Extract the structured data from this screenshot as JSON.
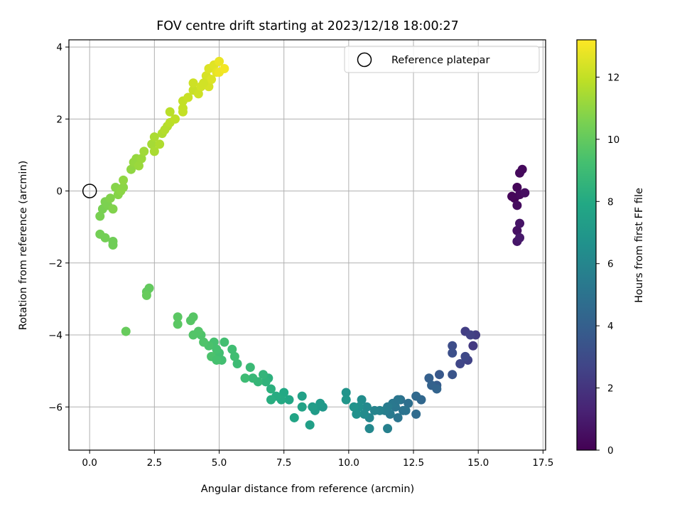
{
  "chart_data": {
    "type": "scatter",
    "title": "FOV centre drift starting at 2023/12/18 18:00:27",
    "xlabel": "Angular distance from reference (arcmin)",
    "ylabel": "Rotation from reference (arcmin)",
    "xlim": [
      -0.8,
      17.6
    ],
    "ylim": [
      -7.2,
      4.2
    ],
    "xticks": [
      0.0,
      2.5,
      5.0,
      7.5,
      10.0,
      12.5,
      15.0,
      17.5
    ],
    "xtick_labels": [
      "0.0",
      "2.5",
      "5.0",
      "7.5",
      "10.0",
      "12.5",
      "15.0",
      "17.5"
    ],
    "yticks": [
      -6,
      -4,
      -2,
      0,
      2,
      4
    ],
    "ytick_labels": [
      "−6",
      "−4",
      "−2",
      "0",
      "2",
      "4"
    ],
    "grid": true,
    "legend": {
      "placement": "top-right",
      "entries": [
        {
          "label": "Reference platepar",
          "marker": "open-circle"
        }
      ]
    },
    "reference_point": {
      "x": 0.0,
      "y": 0.0
    },
    "colormap": "viridis",
    "colorbar": {
      "label": "Hours from first FF file",
      "min": 0,
      "max": 13.2,
      "ticks": [
        0,
        2,
        4,
        6,
        8,
        10,
        12
      ],
      "tick_labels": [
        "0",
        "2",
        "4",
        "6",
        "8",
        "10",
        "12"
      ]
    },
    "series": [
      {
        "points": [
          {
            "x": 16.4,
            "y": -0.2,
            "c": 0.1
          },
          {
            "x": 16.5,
            "y": 0.1,
            "c": 0.2
          },
          {
            "x": 16.6,
            "y": 0.5,
            "c": 0.3
          },
          {
            "x": 16.6,
            "y": -0.1,
            "c": 0.3
          },
          {
            "x": 16.5,
            "y": -0.4,
            "c": 0.4
          },
          {
            "x": 16.8,
            "y": -0.05,
            "c": 0.5
          },
          {
            "x": 16.5,
            "y": -1.1,
            "c": 0.6
          },
          {
            "x": 16.6,
            "y": -0.9,
            "c": 0.7
          },
          {
            "x": 16.5,
            "y": -1.4,
            "c": 0.8
          },
          {
            "x": 16.6,
            "y": -1.3,
            "c": 0.9
          },
          {
            "x": 16.3,
            "y": -0.15,
            "c": 0.2
          },
          {
            "x": 16.7,
            "y": 0.6,
            "c": 0.3
          },
          {
            "x": 14.8,
            "y": -4.3,
            "c": 2.2
          },
          {
            "x": 14.9,
            "y": -4.0,
            "c": 2.3
          },
          {
            "x": 14.5,
            "y": -3.9,
            "c": 2.4
          },
          {
            "x": 14.7,
            "y": -4.0,
            "c": 2.5
          },
          {
            "x": 14.6,
            "y": -4.7,
            "c": 2.6
          },
          {
            "x": 14.3,
            "y": -4.8,
            "c": 2.8
          },
          {
            "x": 14.5,
            "y": -4.6,
            "c": 2.9
          },
          {
            "x": 14.0,
            "y": -4.3,
            "c": 3.1
          },
          {
            "x": 14.0,
            "y": -4.5,
            "c": 3.2
          },
          {
            "x": 14.0,
            "y": -5.1,
            "c": 3.4
          },
          {
            "x": 13.5,
            "y": -5.1,
            "c": 3.6
          },
          {
            "x": 13.4,
            "y": -5.4,
            "c": 3.8
          },
          {
            "x": 13.1,
            "y": -5.2,
            "c": 4.0
          },
          {
            "x": 13.2,
            "y": -5.4,
            "c": 4.1
          },
          {
            "x": 13.4,
            "y": -5.5,
            "c": 4.2
          },
          {
            "x": 12.8,
            "y": -5.8,
            "c": 4.4
          },
          {
            "x": 12.6,
            "y": -5.7,
            "c": 4.5
          },
          {
            "x": 12.6,
            "y": -6.2,
            "c": 4.6
          },
          {
            "x": 12.3,
            "y": -5.9,
            "c": 4.8
          },
          {
            "x": 12.0,
            "y": -5.8,
            "c": 4.9
          },
          {
            "x": 12.1,
            "y": -6.1,
            "c": 5.0
          },
          {
            "x": 11.9,
            "y": -6.3,
            "c": 5.1
          },
          {
            "x": 11.8,
            "y": -6.0,
            "c": 5.2
          },
          {
            "x": 11.7,
            "y": -5.9,
            "c": 5.3
          },
          {
            "x": 11.6,
            "y": -6.2,
            "c": 5.4
          },
          {
            "x": 11.5,
            "y": -6.0,
            "c": 5.5
          },
          {
            "x": 11.4,
            "y": -6.1,
            "c": 5.6
          },
          {
            "x": 11.5,
            "y": -6.6,
            "c": 5.7
          },
          {
            "x": 11.2,
            "y": -6.1,
            "c": 5.8
          },
          {
            "x": 11.0,
            "y": -6.1,
            "c": 5.9
          },
          {
            "x": 10.8,
            "y": -6.3,
            "c": 6.0
          },
          {
            "x": 10.8,
            "y": -6.6,
            "c": 6.1
          },
          {
            "x": 10.7,
            "y": -6.0,
            "c": 6.2
          },
          {
            "x": 10.6,
            "y": -6.2,
            "c": 6.3
          },
          {
            "x": 10.5,
            "y": -5.8,
            "c": 6.4
          },
          {
            "x": 10.4,
            "y": -6.0,
            "c": 6.5
          },
          {
            "x": 10.3,
            "y": -6.2,
            "c": 6.6
          },
          {
            "x": 10.2,
            "y": -6.0,
            "c": 6.7
          },
          {
            "x": 9.9,
            "y": -5.6,
            "c": 6.8
          },
          {
            "x": 9.9,
            "y": -5.8,
            "c": 6.9
          },
          {
            "x": 11.9,
            "y": -5.8,
            "c": 5.2
          },
          {
            "x": 12.2,
            "y": -6.1,
            "c": 5.0
          },
          {
            "x": 9.0,
            "y": -6.0,
            "c": 7.0
          },
          {
            "x": 8.9,
            "y": -5.9,
            "c": 7.1
          },
          {
            "x": 8.7,
            "y": -6.1,
            "c": 7.2
          },
          {
            "x": 8.6,
            "y": -6.0,
            "c": 7.3
          },
          {
            "x": 8.5,
            "y": -6.5,
            "c": 7.4
          },
          {
            "x": 8.2,
            "y": -5.7,
            "c": 7.5
          },
          {
            "x": 8.2,
            "y": -6.0,
            "c": 7.6
          },
          {
            "x": 7.9,
            "y": -6.3,
            "c": 7.7
          },
          {
            "x": 7.7,
            "y": -5.8,
            "c": 7.8
          },
          {
            "x": 7.5,
            "y": -5.6,
            "c": 7.9
          },
          {
            "x": 7.4,
            "y": -5.8,
            "c": 8.0
          },
          {
            "x": 7.2,
            "y": -5.7,
            "c": 8.1
          },
          {
            "x": 7.0,
            "y": -5.8,
            "c": 8.2
          },
          {
            "x": 7.0,
            "y": -5.5,
            "c": 8.3
          },
          {
            "x": 6.9,
            "y": -5.2,
            "c": 8.4
          },
          {
            "x": 6.8,
            "y": -5.3,
            "c": 8.5
          },
          {
            "x": 6.7,
            "y": -5.1,
            "c": 8.6
          },
          {
            "x": 6.5,
            "y": -5.3,
            "c": 8.7
          },
          {
            "x": 6.3,
            "y": -5.2,
            "c": 8.8
          },
          {
            "x": 6.2,
            "y": -4.9,
            "c": 8.9
          },
          {
            "x": 6.0,
            "y": -5.2,
            "c": 9.0
          },
          {
            "x": 5.7,
            "y": -4.8,
            "c": 9.0
          },
          {
            "x": 5.6,
            "y": -4.6,
            "c": 9.1
          },
          {
            "x": 5.5,
            "y": -4.4,
            "c": 9.1
          },
          {
            "x": 5.1,
            "y": -4.7,
            "c": 9.2
          },
          {
            "x": 5.0,
            "y": -4.5,
            "c": 9.2
          },
          {
            "x": 4.9,
            "y": -4.4,
            "c": 9.3
          },
          {
            "x": 4.8,
            "y": -4.2,
            "c": 9.3
          },
          {
            "x": 4.7,
            "y": -4.6,
            "c": 9.4
          },
          {
            "x": 4.6,
            "y": -4.3,
            "c": 9.4
          },
          {
            "x": 4.4,
            "y": -4.2,
            "c": 9.5
          },
          {
            "x": 4.3,
            "y": -4.0,
            "c": 9.5
          },
          {
            "x": 4.2,
            "y": -3.9,
            "c": 9.6
          },
          {
            "x": 4.0,
            "y": -4.0,
            "c": 9.6
          },
          {
            "x": 3.9,
            "y": -3.6,
            "c": 9.7
          },
          {
            "x": 4.0,
            "y": -3.5,
            "c": 9.7
          },
          {
            "x": 3.4,
            "y": -3.7,
            "c": 9.8
          },
          {
            "x": 3.4,
            "y": -3.5,
            "c": 9.8
          },
          {
            "x": 5.2,
            "y": -4.2,
            "c": 9.2
          },
          {
            "x": 4.9,
            "y": -4.7,
            "c": 9.3
          },
          {
            "x": 2.3,
            "y": -2.7,
            "c": 10.0
          },
          {
            "x": 2.2,
            "y": -2.8,
            "c": 10.0
          },
          {
            "x": 2.2,
            "y": -2.9,
            "c": 10.1
          },
          {
            "x": 1.4,
            "y": -3.9,
            "c": 10.1
          },
          {
            "x": 0.9,
            "y": -1.5,
            "c": 10.3
          },
          {
            "x": 0.9,
            "y": -1.4,
            "c": 10.3
          },
          {
            "x": 0.6,
            "y": -1.3,
            "c": 10.4
          },
          {
            "x": 0.4,
            "y": -1.2,
            "c": 10.4
          },
          {
            "x": 0.4,
            "y": -0.7,
            "c": 10.5
          },
          {
            "x": 0.5,
            "y": -0.5,
            "c": 10.5
          },
          {
            "x": 0.6,
            "y": -0.3,
            "c": 10.6
          },
          {
            "x": 0.7,
            "y": -0.4,
            "c": 10.6
          },
          {
            "x": 0.8,
            "y": -0.2,
            "c": 10.7
          },
          {
            "x": 0.9,
            "y": -0.5,
            "c": 10.7
          },
          {
            "x": 1.0,
            "y": 0.1,
            "c": 10.8
          },
          {
            "x": 1.1,
            "y": -0.1,
            "c": 10.8
          },
          {
            "x": 1.2,
            "y": 0.0,
            "c": 10.9
          },
          {
            "x": 1.3,
            "y": 0.1,
            "c": 10.9
          },
          {
            "x": 1.3,
            "y": 0.3,
            "c": 11.0
          },
          {
            "x": 1.6,
            "y": 0.6,
            "c": 11.0
          },
          {
            "x": 1.7,
            "y": 0.8,
            "c": 11.1
          },
          {
            "x": 1.8,
            "y": 0.9,
            "c": 11.1
          },
          {
            "x": 1.9,
            "y": 0.7,
            "c": 11.2
          },
          {
            "x": 2.0,
            "y": 0.9,
            "c": 11.2
          },
          {
            "x": 2.1,
            "y": 1.1,
            "c": 11.3
          },
          {
            "x": 2.4,
            "y": 1.3,
            "c": 11.4
          },
          {
            "x": 2.5,
            "y": 1.5,
            "c": 11.5
          },
          {
            "x": 2.5,
            "y": 1.1,
            "c": 11.5
          },
          {
            "x": 2.7,
            "y": 1.3,
            "c": 11.6
          },
          {
            "x": 2.8,
            "y": 1.6,
            "c": 11.6
          },
          {
            "x": 2.9,
            "y": 1.7,
            "c": 11.7
          },
          {
            "x": 3.0,
            "y": 1.8,
            "c": 11.7
          },
          {
            "x": 3.1,
            "y": 1.9,
            "c": 11.8
          },
          {
            "x": 3.1,
            "y": 2.2,
            "c": 11.8
          },
          {
            "x": 3.3,
            "y": 2.0,
            "c": 11.9
          },
          {
            "x": 3.6,
            "y": 2.3,
            "c": 12.0
          },
          {
            "x": 3.6,
            "y": 2.5,
            "c": 12.0
          },
          {
            "x": 3.6,
            "y": 2.2,
            "c": 12.0
          },
          {
            "x": 3.8,
            "y": 2.6,
            "c": 12.1
          },
          {
            "x": 4.0,
            "y": 2.8,
            "c": 12.1
          },
          {
            "x": 4.0,
            "y": 3.0,
            "c": 12.2
          },
          {
            "x": 4.2,
            "y": 2.7,
            "c": 12.2
          },
          {
            "x": 4.3,
            "y": 2.9,
            "c": 12.3
          },
          {
            "x": 4.5,
            "y": 3.2,
            "c": 12.4
          },
          {
            "x": 4.6,
            "y": 2.9,
            "c": 12.4
          },
          {
            "x": 4.6,
            "y": 3.4,
            "c": 12.5
          },
          {
            "x": 4.8,
            "y": 3.5,
            "c": 12.6
          },
          {
            "x": 4.9,
            "y": 3.3,
            "c": 12.7
          },
          {
            "x": 5.0,
            "y": 3.6,
            "c": 12.8
          },
          {
            "x": 5.0,
            "y": 3.3,
            "c": 12.9
          },
          {
            "x": 5.2,
            "y": 3.4,
            "c": 13.0
          },
          {
            "x": 4.7,
            "y": 3.1,
            "c": 12.5
          },
          {
            "x": 4.4,
            "y": 3.0,
            "c": 12.3
          }
        ]
      }
    ]
  }
}
